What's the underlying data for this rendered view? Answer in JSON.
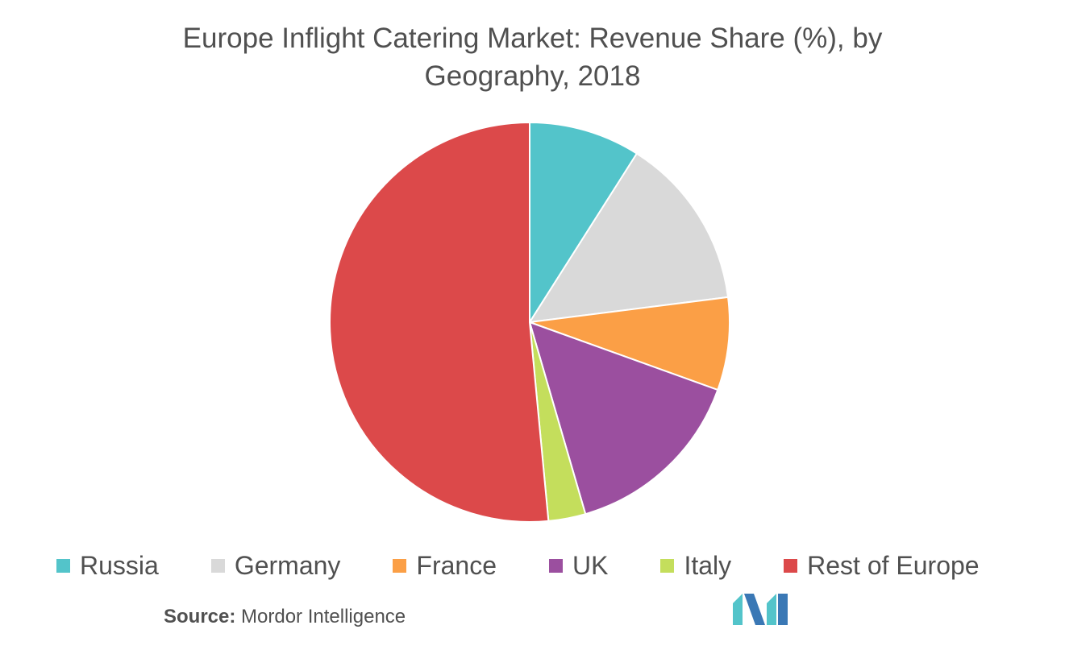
{
  "chart_data": {
    "type": "pie",
    "title_line1": "Europe Inflight Catering Market: Revenue Share (%), by",
    "title_line2": "Geography, 2018",
    "series": [
      {
        "name": "Russia",
        "value": 9,
        "color": "#53C4CA"
      },
      {
        "name": "Germany",
        "value": 14,
        "color": "#D9D9D9"
      },
      {
        "name": "France",
        "value": 7.5,
        "color": "#FB9F46"
      },
      {
        "name": "UK",
        "value": 15,
        "color": "#9B4F9F"
      },
      {
        "name": "Italy",
        "value": 3,
        "color": "#C4DE5C"
      },
      {
        "name": "Rest of Europe",
        "value": 51.5,
        "color": "#DC494A"
      }
    ],
    "legend_position": "bottom"
  },
  "source": {
    "label": "Source:",
    "text": "Mordor Intelligence"
  },
  "logo": {
    "icon": "mordor-intelligence-logo",
    "colors": [
      "#3A78B5",
      "#53C4CA"
    ]
  }
}
